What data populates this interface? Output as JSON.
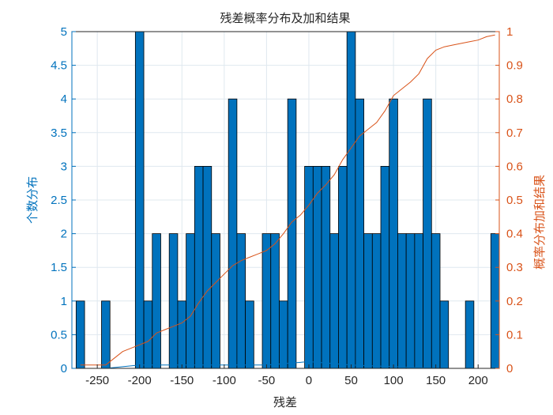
{
  "chart_data": {
    "type": "bar",
    "title": "残差概率分布及加和结果",
    "xlabel": "残差",
    "ylabel_left": "个数分布",
    "ylabel_right": "概率分布加和结果",
    "xlim": [
      -280,
      225
    ],
    "ylim_left": [
      0,
      5
    ],
    "ylim_right": [
      0,
      1
    ],
    "grid": true,
    "bin_width": 10,
    "x_ticks": [
      "-250",
      "-200",
      "-150",
      "-100",
      "-50",
      "0",
      "50",
      "100",
      "150",
      "200"
    ],
    "x_tick_values": [
      -250,
      -200,
      -150,
      -100,
      -50,
      0,
      50,
      100,
      150,
      200
    ],
    "y_left_ticks": [
      "0",
      "0.5",
      "1",
      "1.5",
      "2",
      "2.5",
      "3",
      "3.5",
      "4",
      "4.5",
      "5"
    ],
    "y_left_tick_values": [
      0,
      0.5,
      1,
      1.5,
      2,
      2.5,
      3,
      3.5,
      4,
      4.5,
      5
    ],
    "y_right_ticks": [
      "0",
      "0.1",
      "0.2",
      "0.3",
      "0.4",
      "0.5",
      "0.6",
      "0.7",
      "0.8",
      "0.9",
      "1"
    ],
    "y_right_tick_values": [
      0,
      0.1,
      0.2,
      0.3,
      0.4,
      0.5,
      0.6,
      0.7,
      0.8,
      0.9,
      1
    ],
    "series": [
      {
        "axis": "left",
        "kind": "bar",
        "color": "#0072BD",
        "bin_centers": [
          -270,
          -260,
          -250,
          -240,
          -230,
          -220,
          -210,
          -200,
          -190,
          -180,
          -170,
          -160,
          -150,
          -140,
          -130,
          -120,
          -110,
          -100,
          -90,
          -80,
          -70,
          -60,
          -50,
          -40,
          -30,
          -20,
          -10,
          0,
          10,
          20,
          30,
          40,
          50,
          60,
          70,
          80,
          90,
          100,
          110,
          120,
          130,
          140,
          150,
          160,
          170,
          180,
          190,
          200,
          210
        ],
        "values": [
          1,
          0,
          0,
          1,
          0,
          0,
          0,
          5,
          1,
          2,
          0,
          2,
          1,
          2,
          3,
          3,
          2,
          0,
          4,
          2,
          1,
          0,
          2,
          2,
          1,
          4,
          0,
          3,
          3,
          3,
          2,
          3,
          5,
          4,
          2,
          2,
          3,
          4,
          2,
          2,
          2,
          4,
          2,
          1,
          0,
          0,
          1,
          0,
          0
        ]
      },
      {
        "axis": "left",
        "kind": "bar",
        "color": "#0072BD",
        "bin_centers": [
          220
        ],
        "values": [
          2
        ]
      },
      {
        "axis": "right",
        "kind": "line",
        "color": "#D95319",
        "x": [
          -270,
          -240,
          -230,
          -220,
          -200,
          -190,
          -180,
          -170,
          -160,
          -150,
          -140,
          -130,
          -120,
          -110,
          -100,
          -90,
          -80,
          -70,
          -60,
          -50,
          -40,
          -30,
          -20,
          -10,
          0,
          10,
          20,
          30,
          40,
          50,
          60,
          70,
          80,
          90,
          100,
          110,
          120,
          130,
          140,
          150,
          160,
          170,
          180,
          190,
          200,
          210,
          220
        ],
        "y": [
          0.01,
          0.01,
          0.03,
          0.05,
          0.07,
          0.08,
          0.105,
          0.115,
          0.125,
          0.135,
          0.155,
          0.195,
          0.23,
          0.255,
          0.28,
          0.305,
          0.32,
          0.33,
          0.34,
          0.35,
          0.37,
          0.4,
          0.435,
          0.455,
          0.485,
          0.52,
          0.545,
          0.575,
          0.62,
          0.655,
          0.69,
          0.71,
          0.73,
          0.765,
          0.81,
          0.83,
          0.85,
          0.875,
          0.92,
          0.945,
          0.955,
          0.96,
          0.965,
          0.97,
          0.975,
          0.985,
          0.99
        ]
      },
      {
        "axis": "left",
        "kind": "line",
        "color": "#0072BD",
        "x": [
          -270,
          -240,
          -200,
          -50,
          0,
          50,
          150,
          200,
          220
        ],
        "y": [
          0,
          0,
          0.05,
          0.05,
          0.1,
          0.05,
          0,
          0,
          0
        ]
      }
    ]
  }
}
